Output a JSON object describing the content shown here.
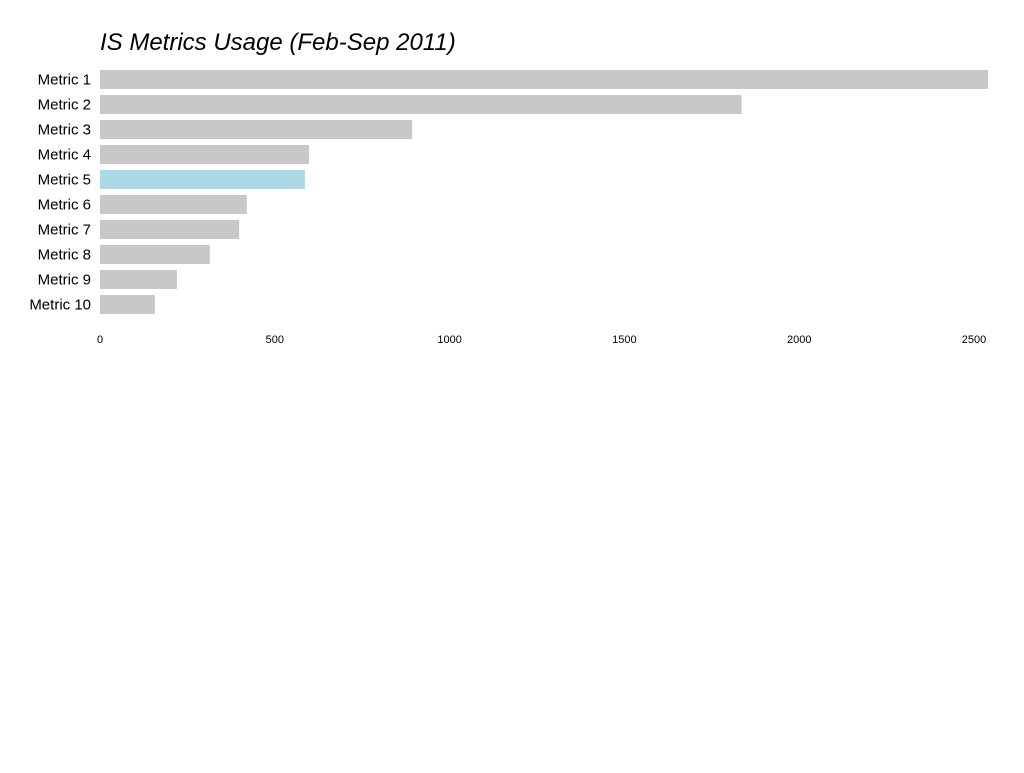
{
  "chart_data": {
    "type": "bar",
    "orientation": "horizontal",
    "title": "IS Metrics Usage (Feb-Sep 2011)",
    "categories": [
      "Metric 1",
      "Metric 2",
      "Metric 3",
      "Metric 4",
      "Metric 5",
      "Metric 6",
      "Metric 7",
      "Metric 8",
      "Metric 9",
      "Metric 10"
    ],
    "values": [
      2540,
      1835,
      893,
      598,
      586,
      420,
      398,
      314,
      220,
      157
    ],
    "highlight_index": 4,
    "xlim": [
      0,
      2540
    ],
    "xticks": [
      0,
      500,
      1000,
      1500,
      2000,
      2500
    ],
    "grid": false,
    "legend": "none",
    "colors": {
      "bar": "#c8c8c8",
      "highlight": "#add8e6"
    }
  }
}
